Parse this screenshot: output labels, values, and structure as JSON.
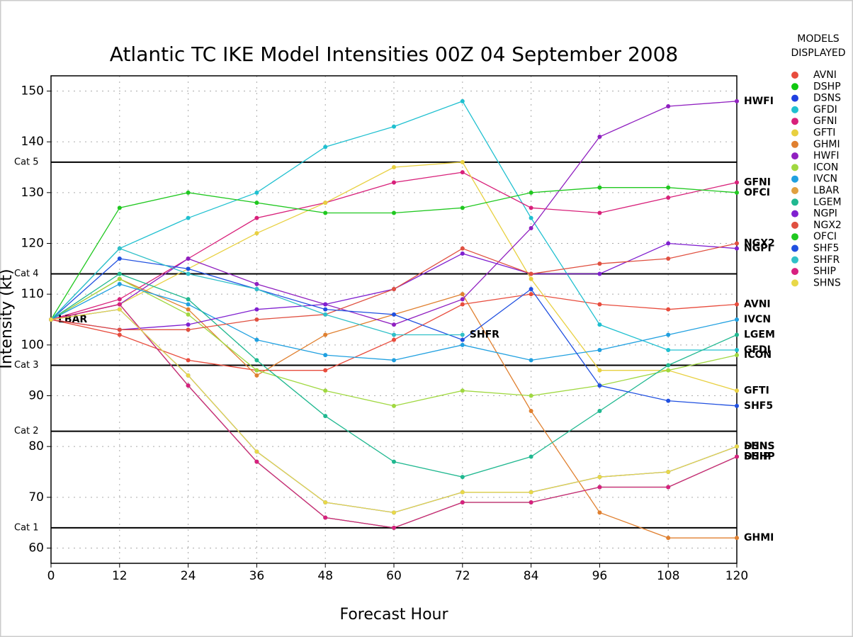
{
  "chart_data": {
    "type": "line",
    "title": "Atlantic TC IKE Model Intensities 00Z 04 September 2008",
    "x_label": "Forecast Hour",
    "y_label": "Intensity (kt)",
    "legend_title": "MODELS DISPLAYED",
    "x": [
      0,
      12,
      24,
      36,
      48,
      60,
      72,
      84,
      96,
      108,
      120
    ],
    "xlim": [
      0,
      120
    ],
    "xticks": [
      0,
      12,
      24,
      36,
      48,
      60,
      72,
      84,
      96,
      108,
      120
    ],
    "ylim": [
      57,
      153
    ],
    "yticks": [
      60,
      70,
      80,
      90,
      100,
      110,
      120,
      130,
      140,
      150
    ],
    "grid": true,
    "annotations": [
      {
        "label": "Cat 5",
        "value": 136
      },
      {
        "label": "Cat 4",
        "value": 114
      },
      {
        "label": "Cat 3",
        "value": 96
      },
      {
        "label": "Cat 2",
        "value": 83
      },
      {
        "label": "Cat 1",
        "value": 64
      }
    ],
    "series": [
      {
        "name": "AVNI",
        "color": "#e84c3d",
        "values": [
          105,
          102,
          97,
          95,
          95,
          101,
          108,
          110,
          108,
          107,
          108
        ]
      },
      {
        "name": "DSHP",
        "color": "#10c810",
        "values": [
          105,
          108,
          92,
          77,
          66,
          64,
          69,
          69,
          72,
          72,
          78
        ]
      },
      {
        "name": "DSNS",
        "color": "#2040e0",
        "values": [
          105,
          107,
          94,
          79,
          69,
          67,
          71,
          71,
          74,
          75,
          80
        ]
      },
      {
        "name": "GFDI",
        "color": "#20c0d0",
        "values": [
          105,
          119,
          125,
          130,
          139,
          143,
          148,
          125,
          104,
          99,
          99
        ]
      },
      {
        "name": "GFNI",
        "color": "#d8207a",
        "values": [
          105,
          109,
          117,
          125,
          128,
          132,
          134,
          127,
          126,
          129,
          132
        ]
      },
      {
        "name": "GFTI",
        "color": "#e8d040",
        "values": [
          105,
          108,
          115,
          122,
          128,
          135,
          136,
          113,
          95,
          95,
          91
        ]
      },
      {
        "name": "GHMI",
        "color": "#e08030",
        "values": [
          105,
          113,
          107,
          94,
          102,
          106,
          110,
          87,
          67,
          62,
          62
        ]
      },
      {
        "name": "HWFI",
        "color": "#9020c0",
        "values": [
          105,
          108,
          117,
          112,
          108,
          104,
          109,
          123,
          141,
          147,
          148
        ]
      },
      {
        "name": "ICON",
        "color": "#a0d840",
        "values": [
          105,
          113,
          106,
          95,
          91,
          88,
          91,
          90,
          92,
          95,
          98
        ]
      },
      {
        "name": "IVCN",
        "color": "#20a0e0",
        "values": [
          105,
          112,
          108,
          101,
          98,
          97,
          100,
          97,
          99,
          102,
          105
        ]
      },
      {
        "name": "LBAR",
        "color": "#e0a040",
        "values": [
          105,
          null,
          null,
          null,
          null,
          null,
          null,
          null,
          null,
          null,
          null
        ]
      },
      {
        "name": "LGEM",
        "color": "#20b890",
        "values": [
          105,
          114,
          109,
          97,
          86,
          77,
          74,
          78,
          87,
          96,
          102
        ]
      },
      {
        "name": "NGPI",
        "color": "#8020d0",
        "values": [
          105,
          103,
          104,
          107,
          108,
          111,
          118,
          114,
          114,
          120,
          119
        ]
      },
      {
        "name": "NGX2",
        "color": "#e05040",
        "values": [
          105,
          103,
          103,
          105,
          106,
          111,
          119,
          114,
          116,
          117,
          120
        ]
      },
      {
        "name": "OFCI",
        "color": "#20c820",
        "values": [
          105,
          127,
          130,
          128,
          126,
          126,
          127,
          130,
          131,
          131,
          130
        ]
      },
      {
        "name": "SHF5",
        "color": "#2050e0",
        "values": [
          105,
          117,
          115,
          111,
          107,
          106,
          101,
          111,
          92,
          89,
          88
        ]
      },
      {
        "name": "SHFR",
        "color": "#30c0c8",
        "values": [
          105,
          119,
          114,
          111,
          106,
          102,
          102,
          null,
          null,
          null,
          null
        ]
      },
      {
        "name": "SHIP",
        "color": "#d82080",
        "values": [
          105,
          108,
          92,
          77,
          66,
          64,
          69,
          69,
          72,
          72,
          78
        ]
      },
      {
        "name": "SHNS",
        "color": "#e8d848",
        "values": [
          105,
          107,
          94,
          79,
          69,
          67,
          71,
          71,
          74,
          75,
          80
        ]
      }
    ]
  }
}
